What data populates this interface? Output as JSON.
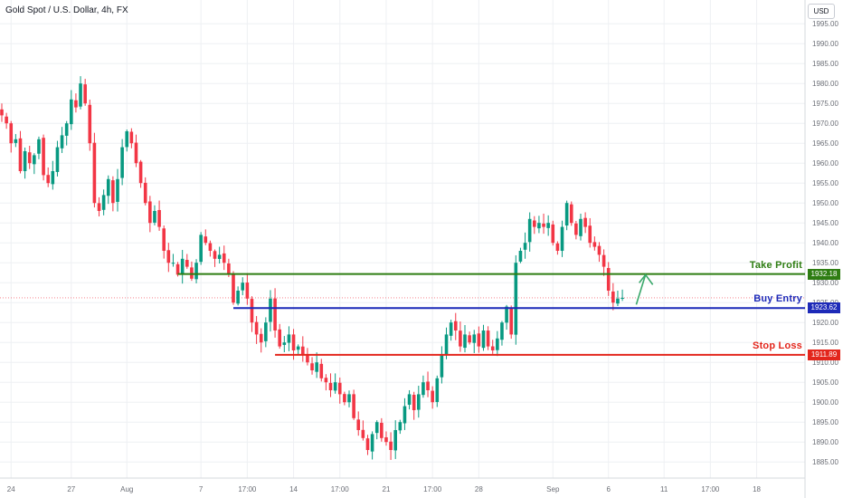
{
  "header": {
    "title": "Gold Spot / U.S. Dollar, 4h, FX",
    "currency": "USD"
  },
  "colors": {
    "up": "#089981",
    "down": "#f23645",
    "take_profit": "#2e7d12",
    "entry": "#1d2ab8",
    "stop": "#e3261c",
    "arrow": "#3aa86a",
    "grid": "#eef0f3",
    "axis_text": "#6b6e76"
  },
  "chart_data": {
    "type": "candlestick",
    "symbol": "Gold Spot / U.S. Dollar",
    "timeframe": "4h",
    "ylim": [
      1883,
      1998
    ],
    "y_ticks": [
      1885,
      1890,
      1895,
      1900,
      1905,
      1910,
      1915,
      1920,
      1925,
      1930,
      1935,
      1940,
      1945,
      1950,
      1955,
      1960,
      1965,
      1970,
      1975,
      1980,
      1985,
      1990,
      1995
    ],
    "x_ticks": [
      {
        "label": "24",
        "bar": 2
      },
      {
        "label": "27",
        "bar": 15
      },
      {
        "label": "Aug",
        "bar": 27
      },
      {
        "label": "7",
        "bar": 43
      },
      {
        "label": "17:00",
        "bar": 53
      },
      {
        "label": "14",
        "bar": 63
      },
      {
        "label": "17:00",
        "bar": 73
      },
      {
        "label": "21",
        "bar": 83
      },
      {
        "label": "17:00",
        "bar": 93
      },
      {
        "label": "28",
        "bar": 103
      },
      {
        "label": "Sep",
        "bar": 119
      },
      {
        "label": "6",
        "bar": 131
      },
      {
        "label": "11",
        "bar": 143
      },
      {
        "label": "17:00",
        "bar": 153
      },
      {
        "label": "18",
        "bar": 163
      }
    ],
    "levels": [
      {
        "name": "Take Profit",
        "value": 1932.18,
        "label": "1932.18",
        "from_bar": 38,
        "color": "#2e7d12"
      },
      {
        "name": "Buy Entry",
        "value": 1923.62,
        "label": "1923.62",
        "from_bar": 50,
        "color": "#1d2ab8"
      },
      {
        "name": "Stop Loss",
        "value": 1911.89,
        "label": "1911.89",
        "from_bar": 59,
        "color": "#e3261c"
      }
    ],
    "current_price": 1926.2,
    "arrow": {
      "from_bar": 137,
      "from_value": 1924.5,
      "to_bar": 139,
      "to_value": 1932.0
    },
    "closes": [
      1972,
      1970,
      1965,
      1966,
      1958,
      1963,
      1960,
      1962,
      1966,
      1957,
      1955,
      1958,
      1964,
      1967,
      1970,
      1976,
      1974,
      1980,
      1975,
      1965,
      1950,
      1948,
      1952,
      1956,
      1950,
      1956,
      1964,
      1968,
      1965,
      1960,
      1955,
      1950,
      1945,
      1948,
      1944,
      1938,
      1935,
      1935,
      1932,
      1936,
      1934,
      1931,
      1935,
      1942,
      1940,
      1938,
      1936,
      1937,
      1935,
      1932,
      1925,
      1928,
      1930,
      1926,
      1920,
      1917,
      1915,
      1920,
      1926,
      1918,
      1914,
      1915,
      1917,
      1913,
      1914,
      1912,
      1910,
      1908,
      1910,
      1906,
      1905,
      1903,
      1905,
      1902,
      1900,
      1902,
      1896,
      1893,
      1891,
      1888,
      1892,
      1895,
      1891,
      1890,
      1888,
      1893,
      1895,
      1899,
      1902,
      1898,
      1902,
      1905,
      1903,
      1900,
      1906,
      1912,
      1917,
      1920,
      1918,
      1914,
      1917,
      1915,
      1917,
      1914,
      1918,
      1914,
      1913,
      1916,
      1920,
      1924,
      1917,
      1935,
      1938,
      1940,
      1946,
      1944,
      1945,
      1944,
      1945,
      1940,
      1938,
      1944,
      1950,
      1945,
      1942,
      1946,
      1944,
      1940,
      1939,
      1937,
      1934,
      1928,
      1925,
      1926,
      1926.2
    ]
  }
}
